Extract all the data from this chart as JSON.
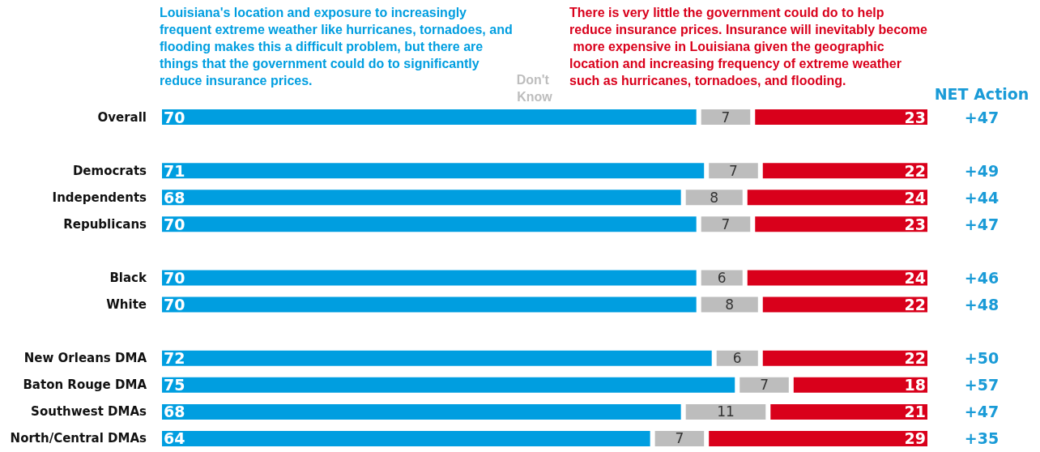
{
  "chart_data": {
    "type": "bar",
    "orientation": "horizontal",
    "stacked": true,
    "data_labels": true,
    "legend": "top",
    "tick_labels": "y",
    "xlim": [
      0,
      100
    ],
    "categories": [
      "Overall",
      null,
      "Democrats",
      "Independents",
      "Republicans",
      null,
      "Black",
      "White",
      null,
      "New Orleans DMA",
      "Baton Rouge DMA",
      "Southwest DMAs",
      "North/Central DMAs"
    ],
    "series": [
      {
        "name": "Louisiana's location and exposure to increasingly frequent extreme weather like hurricanes, tornadoes, and flooding makes this a difficult problem, but there are things that the government could do to significantly reduce insurance prices.",
        "color": "#009ee0",
        "values": [
          70,
          null,
          71,
          68,
          70,
          null,
          70,
          70,
          null,
          72,
          75,
          68,
          64
        ]
      },
      {
        "name": "Don't Know",
        "color": "#bdbdbd",
        "values": [
          7,
          null,
          7,
          8,
          7,
          null,
          6,
          8,
          null,
          6,
          7,
          11,
          7
        ]
      },
      {
        "name": "There is very little the government could do to help reduce insurance prices. Insurance will inevitably become more expensive in Louisiana given the geographic location and increasing frequency of extreme weather such as hurricanes, tornadoes, and flooding.",
        "color": "#d9001b",
        "values": [
          23,
          null,
          22,
          24,
          23,
          null,
          24,
          22,
          null,
          22,
          18,
          21,
          29
        ]
      }
    ],
    "annotations": [
      "NET Action",
      "+47",
      "+49",
      "+44",
      "+47",
      "+46",
      "+48",
      "+50",
      "+57",
      "+47",
      "+35"
    ]
  }
}
